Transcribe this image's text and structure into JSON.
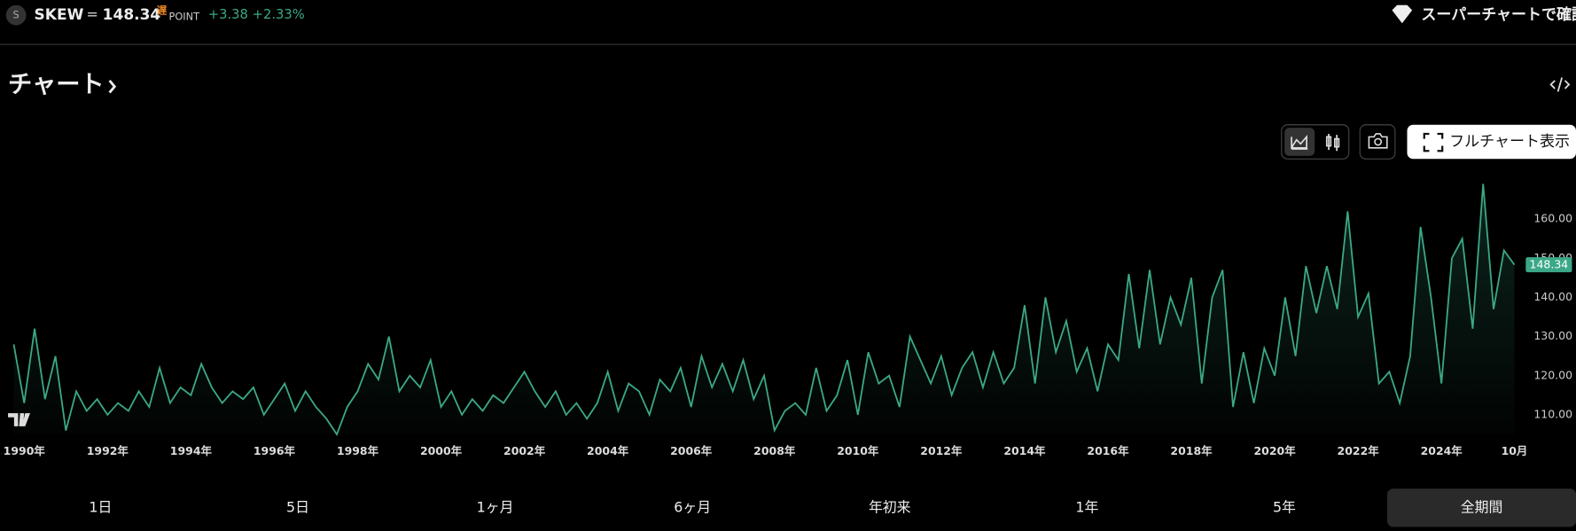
{
  "header": {
    "icon_letter": "S",
    "symbol": "SKEW",
    "separator": "=",
    "price": "148.34",
    "delay_badge": "遅",
    "unit": "POINT",
    "change": "+3.38",
    "change_percent": "+2.33%",
    "supercharts_link": "スーパーチャートで確認"
  },
  "section_title": "チャート",
  "toolbar": {
    "fullscreen_button": "フルチャート表示"
  },
  "ranges": {
    "items": [
      "1日",
      "5日",
      "1ヶ月",
      "6ヶ月",
      "年初来",
      "1年",
      "5年",
      "全期間"
    ],
    "selected": 7
  },
  "chart_data": {
    "type": "area",
    "color": "#3ba887",
    "x": [
      1989.75,
      1990,
      1990.25,
      1990.5,
      1990.75,
      1991,
      1991.25,
      1991.5,
      1991.75,
      1992,
      1992.25,
      1992.5,
      1992.75,
      1993,
      1993.25,
      1993.5,
      1993.75,
      1994,
      1994.25,
      1994.5,
      1994.75,
      1995,
      1995.25,
      1995.5,
      1995.75,
      1996,
      1996.25,
      1996.5,
      1996.75,
      1997,
      1997.25,
      1997.5,
      1997.75,
      1998,
      1998.25,
      1998.5,
      1998.75,
      1999,
      1999.25,
      1999.5,
      1999.75,
      2000,
      2000.25,
      2000.5,
      2000.75,
      2001,
      2001.25,
      2001.5,
      2001.75,
      2002,
      2002.25,
      2002.5,
      2002.75,
      2003,
      2003.25,
      2003.5,
      2003.75,
      2004,
      2004.25,
      2004.5,
      2004.75,
      2005,
      2005.25,
      2005.5,
      2005.75,
      2006,
      2006.25,
      2006.5,
      2006.75,
      2007,
      2007.25,
      2007.5,
      2007.75,
      2008,
      2008.25,
      2008.5,
      2008.75,
      2009,
      2009.25,
      2009.5,
      2009.75,
      2010,
      2010.25,
      2010.5,
      2010.75,
      2011,
      2011.25,
      2011.5,
      2011.75,
      2012,
      2012.25,
      2012.5,
      2012.75,
      2013,
      2013.25,
      2013.5,
      2013.75,
      2014,
      2014.25,
      2014.5,
      2014.75,
      2015,
      2015.25,
      2015.5,
      2015.75,
      2016,
      2016.25,
      2016.5,
      2016.75,
      2017,
      2017.25,
      2017.5,
      2017.75,
      2018,
      2018.25,
      2018.5,
      2018.75,
      2019,
      2019.25,
      2019.5,
      2019.75,
      2020,
      2020.25,
      2020.5,
      2020.75,
      2021,
      2021.25,
      2021.5,
      2021.75,
      2022,
      2022.25,
      2022.5,
      2022.75,
      2023,
      2023.25,
      2023.5,
      2023.75,
      2024,
      2024.25,
      2024.5,
      2024.75,
      2025,
      2025.25,
      2025.5,
      2025.75
    ],
    "values": [
      128,
      113,
      132,
      114,
      125,
      106,
      116,
      111,
      114,
      110,
      113,
      111,
      116,
      112,
      122,
      113,
      117,
      115,
      123,
      117,
      113,
      116,
      114,
      117,
      110,
      114,
      118,
      111,
      116,
      112,
      109,
      105,
      112,
      116,
      123,
      119,
      130,
      116,
      120,
      117,
      124,
      112,
      116,
      110,
      114,
      111,
      115,
      113,
      117,
      121,
      116,
      112,
      116,
      110,
      113,
      109,
      113,
      121,
      111,
      118,
      116,
      110,
      119,
      116,
      122,
      112,
      125,
      117,
      123,
      116,
      124,
      114,
      120,
      106,
      111,
      113,
      110,
      122,
      111,
      115,
      124,
      110,
      126,
      118,
      120,
      112,
      130,
      124,
      118,
      125,
      115,
      122,
      126,
      117,
      126,
      118,
      122,
      138,
      118,
      140,
      126,
      134,
      121,
      127,
      116,
      128,
      124,
      146,
      127,
      147,
      128,
      140,
      133,
      145,
      118,
      140,
      147,
      112,
      126,
      113,
      127,
      120,
      140,
      125,
      148,
      136,
      148,
      137,
      162,
      135,
      141,
      118,
      121,
      113,
      125,
      158,
      140,
      118,
      150,
      155,
      132,
      169,
      137,
      152,
      148.34
    ],
    "last_value": "148.34",
    "xlim": [
      1989.42,
      2025.95
    ],
    "xticks": [
      {
        "value": 1990,
        "label": "1990年"
      },
      {
        "value": 1992,
        "label": "1992年"
      },
      {
        "value": 1994,
        "label": "1994年"
      },
      {
        "value": 1996,
        "label": "1996年"
      },
      {
        "value": 1998,
        "label": "1998年"
      },
      {
        "value": 2000,
        "label": "2000年"
      },
      {
        "value": 2002,
        "label": "2002年"
      },
      {
        "value": 2004,
        "label": "2004年"
      },
      {
        "value": 2006,
        "label": "2006年"
      },
      {
        "value": 2008,
        "label": "2008年"
      },
      {
        "value": 2010,
        "label": "2010年"
      },
      {
        "value": 2012,
        "label": "2012年"
      },
      {
        "value": 2014,
        "label": "2014年"
      },
      {
        "value": 2016,
        "label": "2016年"
      },
      {
        "value": 2018,
        "label": "2018年"
      },
      {
        "value": 2020,
        "label": "2020年"
      },
      {
        "value": 2022,
        "label": "2022年"
      },
      {
        "value": 2024,
        "label": "2024年"
      },
      {
        "value": 2025.75,
        "label": "10月"
      }
    ],
    "ylim": [
      105,
      171
    ],
    "yticks": [
      {
        "value": 110,
        "label": "110.00"
      },
      {
        "value": 120,
        "label": "120.00"
      },
      {
        "value": 130,
        "label": "130.00"
      },
      {
        "value": 140,
        "label": "140.00"
      },
      {
        "value": 150,
        "label": "150.00"
      },
      {
        "value": 160,
        "label": "160.00"
      }
    ],
    "grid": false
  }
}
